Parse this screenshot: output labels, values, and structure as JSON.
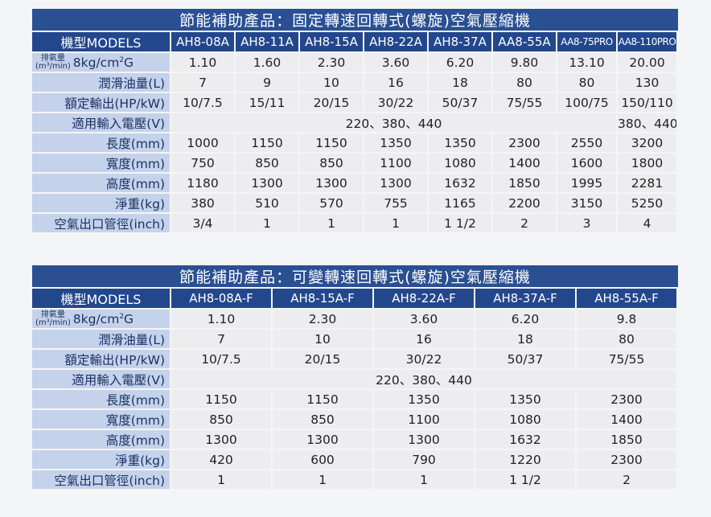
{
  "table1": {
    "title": "節能補助產品：固定轉速回轉式(螺旋)空氣壓縮機",
    "models_label": "機型MODELS",
    "models": [
      "AH8-08A",
      "AH8-11A",
      "AH8-15A",
      "AH8-22A",
      "AH8-37A",
      "AA8-55A",
      "AA8-75PRO",
      "AA8-110PRO"
    ],
    "pressure_label_top": "排氣量",
    "pressure_label_bottom": "(m³/min)",
    "pressure_label_main": "8kg/cm",
    "pressure_label_sup": "2",
    "pressure_label_suffix": "G",
    "pressure": [
      "1.10",
      "1.60",
      "2.30",
      "3.60",
      "6.20",
      "9.80",
      "13.10",
      "20.00"
    ],
    "oil_label": "潤滑油量(L)",
    "oil": [
      "7",
      "9",
      "10",
      "16",
      "18",
      "80",
      "80",
      "130"
    ],
    "output_label": "額定輸出(HP/kW)",
    "output": [
      "10/7.5",
      "15/11",
      "20/15",
      "30/22",
      "50/37",
      "75/55",
      "100/75",
      "150/110"
    ],
    "voltage_label": "適用輸入電壓(V)",
    "voltage_main": "220、380、440",
    "voltage_last": "380、440",
    "length_label": "長度(mm)",
    "length": [
      "1000",
      "1150",
      "1150",
      "1350",
      "1350",
      "2300",
      "2550",
      "3200"
    ],
    "width_label": "寬度(mm)",
    "width": [
      "750",
      "850",
      "850",
      "1100",
      "1080",
      "1400",
      "1600",
      "1800"
    ],
    "height_label": "高度(mm)",
    "height": [
      "1180",
      "1300",
      "1300",
      "1300",
      "1632",
      "1850",
      "1995",
      "2281"
    ],
    "weight_label": "淨重(kg)",
    "weight": [
      "380",
      "510",
      "570",
      "755",
      "1165",
      "2200",
      "3150",
      "5250"
    ],
    "outlet_label": "空氣出口管徑(inch)",
    "outlet": [
      "3/4",
      "1",
      "1",
      "1",
      "1 1/2",
      "2",
      "3",
      "4"
    ]
  },
  "table2": {
    "title": "節能補助產品：可變轉速回轉式(螺旋)空氣壓縮機",
    "models_label": "機型MODELS",
    "models": [
      "AH8-08A-F",
      "AH8-15A-F",
      "AH8-22A-F",
      "AH8-37A-F",
      "AH8-55A-F"
    ],
    "pressure_label_top": "排氣量",
    "pressure_label_bottom": "(m³/min)",
    "pressure_label_main": "8kg/cm",
    "pressure_label_sup": "2",
    "pressure_label_suffix": "G",
    "pressure": [
      "1.10",
      "2.30",
      "3.60",
      "6.20",
      "9.8"
    ],
    "oil_label": "潤滑油量(L)",
    "oil": [
      "7",
      "10",
      "16",
      "18",
      "80"
    ],
    "output_label": "額定輸出(HP/kW)",
    "output": [
      "10/7.5",
      "20/15",
      "30/22",
      "50/37",
      "75/55"
    ],
    "voltage_label": "適用輸入電壓(V)",
    "voltage_main": "220、380、440",
    "length_label": "長度(mm)",
    "length": [
      "1150",
      "1150",
      "1350",
      "1350",
      "2300"
    ],
    "width_label": "寬度(mm)",
    "width": [
      "850",
      "850",
      "1100",
      "1080",
      "1400"
    ],
    "height_label": "高度(mm)",
    "height": [
      "1300",
      "1300",
      "1300",
      "1632",
      "1850"
    ],
    "weight_label": "淨重(kg)",
    "weight": [
      "420",
      "600",
      "790",
      "1220",
      "2300"
    ],
    "outlet_label": "空氣出口管徑(inch)",
    "outlet": [
      "1",
      "1",
      "1",
      "1 1/2",
      "2"
    ]
  }
}
